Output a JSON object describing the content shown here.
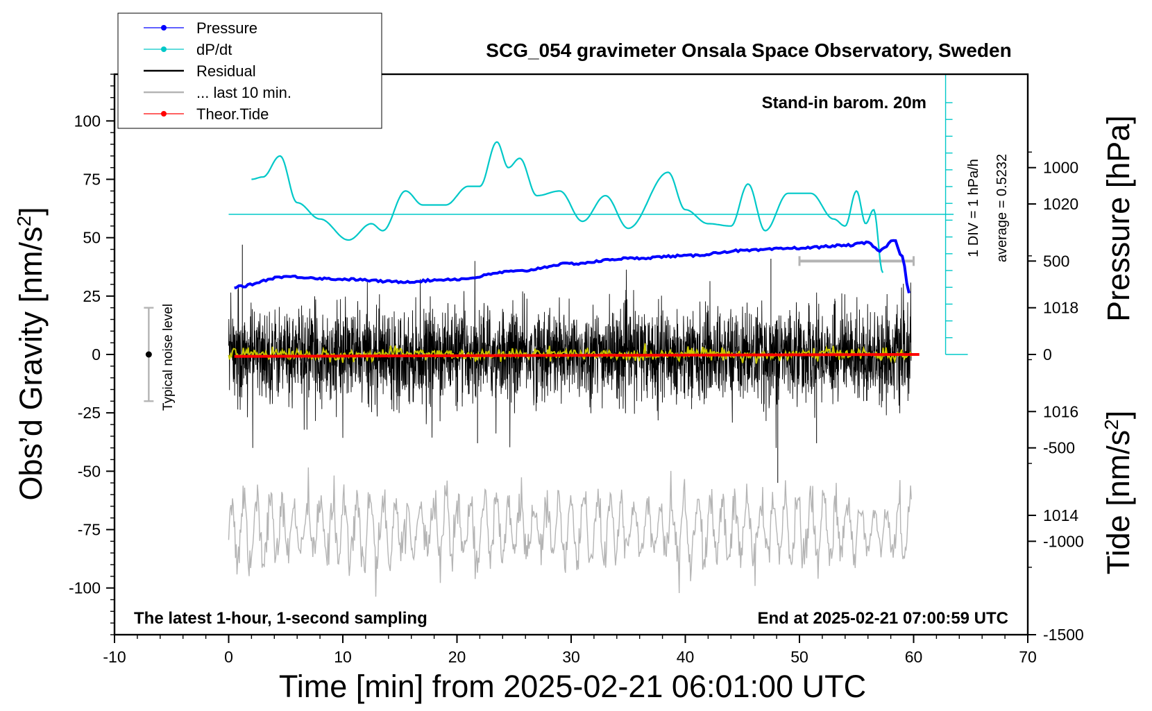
{
  "chart_data": {
    "type": "line",
    "title": "SCG_054 gravimeter Onsala Space Observatory, Sweden",
    "xlabel": "Time [min] from 2025-02-21 06:01:00 UTC",
    "ylabel_left": "Obs’d Gravity [nm/s",
    "ylabel_left_sup": "2",
    "ylabel_left_close": "]",
    "ylabel_right_pressure": "Pressure [hPa]",
    "ylabel_right_tide": "Tide [nm/s",
    "ylabel_right_tide_sup": "2",
    "ylabel_right_tide_close": "]",
    "xlim": [
      -10,
      70
    ],
    "ylim_gravity": [
      -120,
      120
    ],
    "ylim_pressure": [
      1011.7,
      1022.5
    ],
    "ylim_tide": [
      -1500,
      1500
    ],
    "x_ticks": [
      "-10",
      "0",
      "10",
      "20",
      "30",
      "40",
      "50",
      "60",
      "70"
    ],
    "y_ticks_gravity": [
      "100",
      "75",
      "50",
      "25",
      "0",
      "-25",
      "-50",
      "-75",
      "-100"
    ],
    "y_ticks_pressure": [
      "1020",
      "1018",
      "1016",
      "1014"
    ],
    "y_ticks_tide": [
      "1000",
      "500",
      "0",
      "-500",
      "-1000",
      "-1500"
    ],
    "annotations": {
      "stand_in": "Stand-in barom. 20m",
      "scale_div": "1 DIV = 1 hPa/h",
      "average": "average = 0.5232",
      "noise": "Typical noise level",
      "bottom_left": "The latest 1-hour, 1-second sampling",
      "bottom_right": "End at 2025-02-21 07:00:59 UTC"
    },
    "legend": [
      {
        "label": "Pressure",
        "color": "#0000ff",
        "marker": "dot"
      },
      {
        "label": "dP/dt",
        "color": "#00c8c8",
        "marker": "dot"
      },
      {
        "label": "Residual",
        "color": "#000000",
        "marker": "line"
      },
      {
        "label": "... last 10 min.",
        "color": "#b4b4b4",
        "marker": "line"
      },
      {
        "label": "Theor.Tide",
        "color": "#ff0000",
        "marker": "dot"
      }
    ],
    "series": {
      "pressure_hPa": {
        "x": [
          0.5,
          5,
          10,
          15,
          20,
          25,
          30,
          35,
          40,
          45,
          50,
          54,
          56,
          57,
          58.3,
          59,
          59.6
        ],
        "y": [
          1018.4,
          1018.6,
          1018.55,
          1018.5,
          1018.55,
          1018.7,
          1018.85,
          1018.95,
          1019.0,
          1019.1,
          1019.15,
          1019.2,
          1019.25,
          1019.1,
          1019.3,
          1019.0,
          1018.3
        ]
      },
      "dpdt_gravity_units": {
        "x": [
          2,
          3,
          4.5,
          6,
          8,
          10.5,
          12.5,
          13.5,
          15.5,
          17,
          19,
          21,
          22,
          23.5,
          24.5,
          25.5,
          27,
          29,
          31,
          33,
          35,
          38.5,
          40,
          42,
          44,
          45.5,
          47,
          49,
          51,
          53,
          54,
          55,
          55.8,
          56.5,
          57.3
        ],
        "y": [
          75,
          76,
          85,
          65,
          58,
          49,
          56,
          53,
          70,
          64,
          64,
          72,
          72,
          91,
          80,
          84,
          68,
          70,
          57,
          68,
          54,
          78,
          62,
          56,
          55,
          73,
          53,
          69,
          69,
          58,
          55,
          70,
          56,
          62,
          35
        ],
        "baseline": 60
      },
      "residual": {
        "x_range": [
          0,
          59.8
        ],
        "amplitude_nm_s2": 25,
        "spikes": [
          {
            "x": 1.2,
            "y": 47
          },
          {
            "x": 48.1,
            "y": -55
          },
          {
            "x": 51.5,
            "y": -38
          },
          {
            "x": 21.8,
            "y": -38
          },
          {
            "x": 47.5,
            "y": 41
          }
        ]
      },
      "residual_smoothed": {
        "x_range": [
          0,
          59.8
        ],
        "center": 0,
        "color": "#c8c800"
      },
      "last_10_min": {
        "x_range": [
          0,
          59.8
        ],
        "center_gravity_units": -75,
        "amplitude_gravity_units": 18,
        "bar_x": [
          50,
          60
        ],
        "bar_tide": 500
      },
      "theoretical_tide": {
        "x": [
          0.5,
          60.5
        ],
        "y_tide": [
          -10,
          0
        ]
      },
      "noise_level": {
        "x": -7,
        "center": 0,
        "low": -20,
        "high": 20
      }
    }
  }
}
